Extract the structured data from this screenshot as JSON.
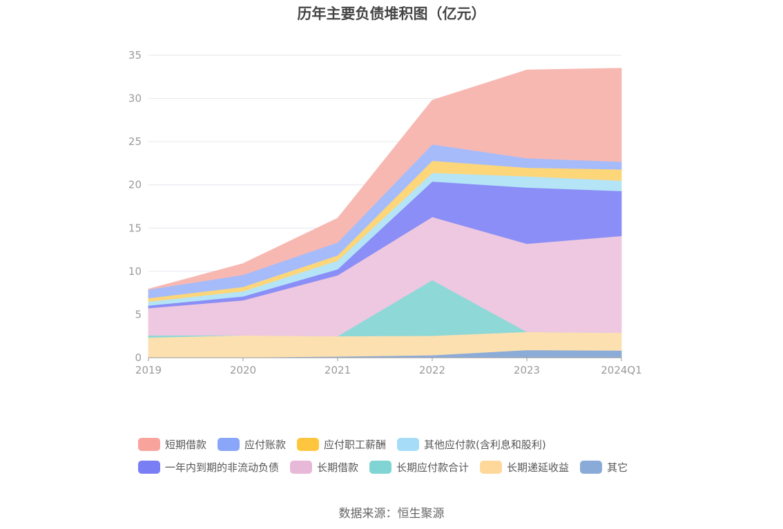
{
  "chart_data": {
    "type": "area",
    "stacked": true,
    "title": "历年主要负债堆积图（亿元）",
    "xlabel": "",
    "ylabel": "",
    "categories": [
      "2019",
      "2020",
      "2021",
      "2022",
      "2023",
      "2024Q1"
    ],
    "ylim": [
      0,
      35
    ],
    "yticks": [
      "0",
      "5",
      "10",
      "15",
      "20",
      "25",
      "30",
      "35"
    ],
    "grid": true,
    "legend_position": "bottom",
    "series": [
      {
        "name": "其它",
        "color": "#8cacd8",
        "values": [
          0.05,
          0.05,
          0.15,
          0.3,
          0.9,
          0.85
        ]
      },
      {
        "name": "长期递延收益",
        "color": "#fde0b0",
        "values": [
          2.3,
          2.55,
          2.35,
          2.25,
          2.1,
          2.05
        ]
      },
      {
        "name": "长期应付款合计",
        "color": "#8ed8d8",
        "values": [
          0.25,
          0.0,
          0.0,
          6.45,
          0.0,
          0.0
        ]
      },
      {
        "name": "长期借款",
        "color": "#edc8e0",
        "values": [
          3.15,
          4.05,
          7.05,
          7.3,
          10.2,
          11.2
        ]
      },
      {
        "name": "一年内到期的非流动负债",
        "color": "#8a8ef6",
        "values": [
          0.3,
          0.45,
          0.7,
          4.1,
          6.5,
          5.2
        ]
      },
      {
        "name": "其他应付款(含利息和股利)",
        "color": "#b4e4f6",
        "values": [
          0.45,
          0.6,
          1.0,
          1.0,
          1.3,
          1.2
        ]
      },
      {
        "name": "应付职工薪酬",
        "color": "#fdd67a",
        "values": [
          0.4,
          0.5,
          0.6,
          1.4,
          1.0,
          1.3
        ]
      },
      {
        "name": "应付账款",
        "color": "#a6bcfa",
        "values": [
          1.0,
          1.4,
          1.5,
          1.9,
          1.1,
          0.9
        ]
      },
      {
        "name": "短期借款",
        "color": "#f8b8b2",
        "values": [
          0.05,
          1.3,
          2.8,
          5.1,
          10.2,
          10.8
        ]
      }
    ]
  },
  "legend": {
    "row1": [
      {
        "name": "短期借款",
        "color": "#f8a49c"
      },
      {
        "name": "应付账款",
        "color": "#8aa6f8"
      },
      {
        "name": "应付职工薪酬",
        "color": "#fdc63e"
      },
      {
        "name": "其他应付款(含利息和股利)",
        "color": "#a6dcf8"
      }
    ],
    "row2": [
      {
        "name": "一年内到期的非流动负债",
        "color": "#7a7ef4"
      },
      {
        "name": "长期借款",
        "color": "#e8b8d8"
      },
      {
        "name": "长期应付款合计",
        "color": "#80d4d4"
      },
      {
        "name": "长期递延收益",
        "color": "#fdd89a"
      },
      {
        "name": "其它",
        "color": "#8aaad8"
      }
    ]
  },
  "source": "数据来源：恒生聚源"
}
